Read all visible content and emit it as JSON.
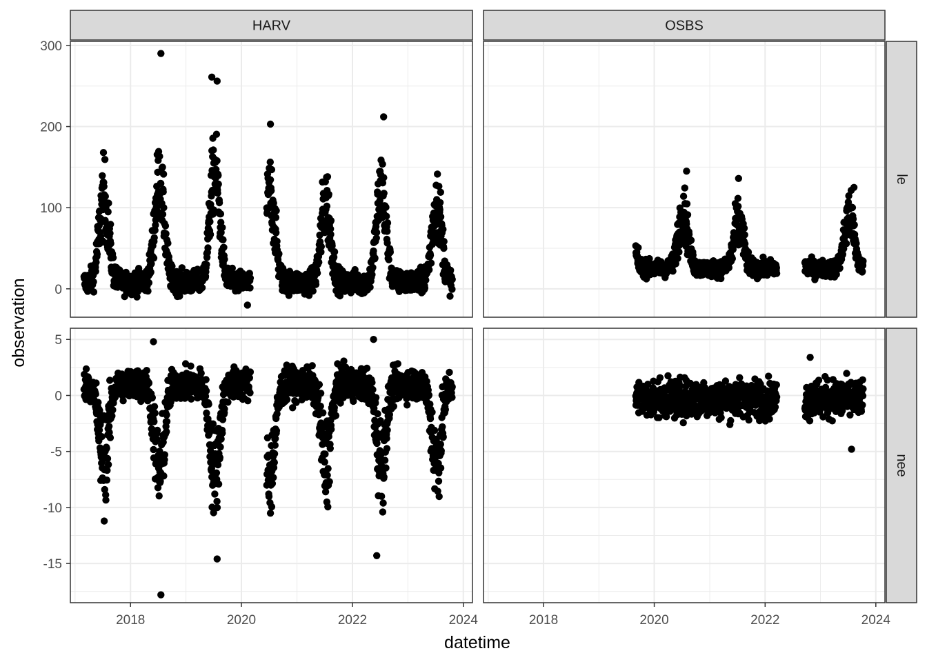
{
  "chart_data": {
    "type": "scatter",
    "facet_columns": [
      "HARV",
      "OSBS"
    ],
    "facet_rows": [
      "le",
      "nee"
    ],
    "xlabel": "datetime",
    "ylabel": "observation",
    "x_ticks": [
      "2018",
      "2020",
      "2022",
      "2024"
    ],
    "xlim": [
      "2016-12-01",
      "2024-03-01"
    ],
    "y_ticks": {
      "le": [
        "0",
        "100",
        "200",
        "300"
      ],
      "nee": [
        "-15",
        "-10",
        "-5",
        "0",
        "5"
      ]
    },
    "ylim": {
      "le": [
        -35,
        305
      ],
      "nee": [
        -18.5,
        6
      ]
    },
    "grid": true,
    "point_color": "#000000",
    "strip_fill": "#d9d9d9",
    "outlier_points": [
      {
        "site": "HARV",
        "variable": "le",
        "date": "2018-07-20",
        "value": 290
      },
      {
        "site": "HARV",
        "variable": "le",
        "date": "2019-06-20",
        "value": 261
      },
      {
        "site": "HARV",
        "variable": "le",
        "date": "2019-07-25",
        "value": 256
      },
      {
        "site": "HARV",
        "variable": "le",
        "date": "2022-07-25",
        "value": 212
      },
      {
        "site": "HARV",
        "variable": "le",
        "date": "2020-07-10",
        "value": 203
      },
      {
        "site": "HARV",
        "variable": "le",
        "date": "2020-02-10",
        "value": -20
      },
      {
        "site": "OSBS",
        "variable": "le",
        "date": "2021-07-10",
        "value": 136
      },
      {
        "site": "OSBS",
        "variable": "le",
        "date": "2023-08-10",
        "value": 125
      },
      {
        "site": "OSBS",
        "variable": "le",
        "date": "2020-08-01",
        "value": 145
      },
      {
        "site": "HARV",
        "variable": "nee",
        "date": "2018-07-20",
        "value": -17.8
      },
      {
        "site": "HARV",
        "variable": "nee",
        "date": "2019-07-25",
        "value": -14.6
      },
      {
        "site": "HARV",
        "variable": "nee",
        "date": "2022-06-10",
        "value": -14.3
      },
      {
        "site": "HARV",
        "variable": "nee",
        "date": "2018-06-01",
        "value": 4.8
      },
      {
        "site": "HARV",
        "variable": "nee",
        "date": "2022-05-20",
        "value": 5.0
      },
      {
        "site": "OSBS",
        "variable": "nee",
        "date": "2023-07-25",
        "value": -4.8
      },
      {
        "site": "OSBS",
        "variable": "nee",
        "date": "2022-10-25",
        "value": 3.4
      }
    ],
    "series_profiles": [
      {
        "site": "HARV",
        "variable": "le",
        "start": "2017-03-01",
        "end": "2023-10-20",
        "gaps": [
          [
            "2020-03-01",
            "2020-06-15"
          ]
        ],
        "winter_level": 8,
        "summer_peaks": [
          105,
          125,
          140,
          110,
          100,
          115,
          100
        ],
        "noise": 25
      },
      {
        "site": "OSBS",
        "variable": "le",
        "start": "2019-09-01",
        "end": "2023-10-10",
        "gaps": [
          [
            "2022-03-20",
            "2022-09-20"
          ]
        ],
        "winter_level": 25,
        "summer_peaks": [
          80,
          70,
          55,
          60,
          65
        ],
        "noise": 18
      },
      {
        "site": "HARV",
        "variable": "nee",
        "start": "2017-03-01",
        "end": "2023-10-20",
        "gaps": [
          [
            "2020-03-01",
            "2020-06-15"
          ]
        ],
        "winter_level": 1,
        "summer_trough": [
          -6,
          -7,
          -7,
          -7,
          -6,
          -6,
          -6
        ],
        "noise": 2
      },
      {
        "site": "OSBS",
        "variable": "nee",
        "start": "2019-09-01",
        "end": "2023-10-10",
        "gaps": [
          [
            "2022-03-20",
            "2022-09-20"
          ]
        ],
        "winter_level": -0.3,
        "noise": 1.2
      }
    ]
  }
}
